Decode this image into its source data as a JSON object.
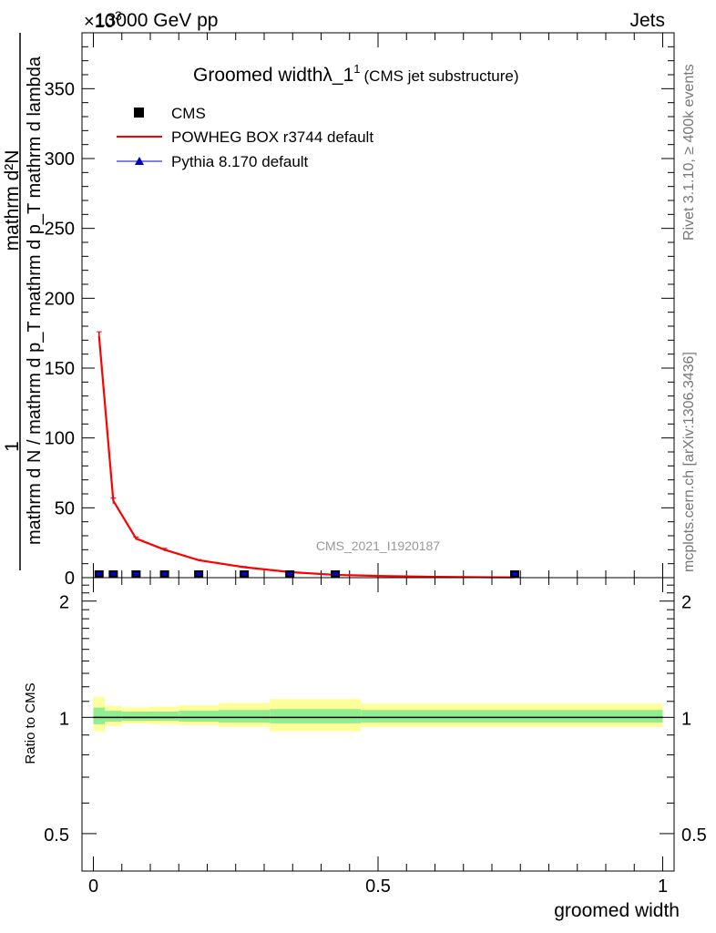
{
  "header": {
    "energy_label": "13000 GeV pp",
    "process_label": "Jets",
    "exponent_prefix": "×10",
    "exponent_value": "3"
  },
  "side_labels": {
    "rivet": "Rivet 3.1.10, ≥ 400k events",
    "mcplots": "mcplots.cern.ch [arXiv:1306.3436]"
  },
  "watermark": "CMS_2021_I1920187",
  "colors": {
    "powheg": "#ff0000",
    "pythia": "#0000cc",
    "cms": "#000000",
    "band_inner": "#90ee90",
    "band_outer": "#ffff99"
  },
  "chart_data": [
    {
      "type": "line",
      "panel": "main",
      "title": "Groomed width",
      "title_symbol": "λ_1",
      "title_superscript": "1",
      "subtitle": "(CMS jet substructure)",
      "ylabel_numerator": "mathrm d²N",
      "ylabel_denominator": "mathrm d N / mathrm d p_T mathrm d p_T mathrm d lambda",
      "ylabel_prefix": "1",
      "xlim": [
        -0.02,
        1.02
      ],
      "ylim": [
        0,
        390
      ],
      "y_ticks": [
        0,
        50,
        100,
        150,
        200,
        250,
        300,
        350
      ],
      "y_tick_labels": [
        "0",
        "50",
        "100",
        "150",
        "200",
        "250",
        "300",
        "350"
      ],
      "legend": [
        {
          "name": "CMS",
          "marker": "square"
        },
        {
          "name": "POWHEG BOX r3744 default",
          "marker": "line"
        },
        {
          "name": "Pythia 8.170 default",
          "marker": "triangle"
        }
      ],
      "cms_points": {
        "x": [
          0.01,
          0.035,
          0.075,
          0.125,
          0.185,
          0.265,
          0.345,
          0.425,
          0.74
        ],
        "y": [
          0.5,
          0.5,
          0.5,
          0.5,
          0.5,
          0.5,
          0.5,
          0.5,
          0.5
        ]
      },
      "powheg_curve": {
        "x": [
          0.01,
          0.035,
          0.075,
          0.125,
          0.185,
          0.265,
          0.345,
          0.425,
          0.5,
          0.6,
          0.7,
          0.74
        ],
        "y": [
          173,
          55,
          28,
          20,
          12.5,
          7.5,
          4,
          2,
          1.2,
          0.6,
          0.3,
          0.2
        ],
        "err": [
          3,
          2,
          1,
          1,
          0.5,
          0.5,
          0.3,
          0.2,
          0.1,
          0.1,
          0.1,
          0.1
        ]
      }
    },
    {
      "type": "area",
      "panel": "ratio",
      "ylabel": "Ratio to CMS",
      "xlabel": "groomed width",
      "xlim": [
        -0.02,
        1.02
      ],
      "ylim": [
        0.4,
        2.3
      ],
      "y_scale": "log",
      "y_ticks": [
        0.5,
        1,
        2
      ],
      "y_tick_labels": [
        "0.5",
        "1",
        "2"
      ],
      "x_ticks": [
        0,
        0.5,
        1
      ],
      "x_tick_labels": [
        "0",
        "0.5",
        "1"
      ],
      "bands": [
        {
          "x0": 0.0,
          "x1": 0.02,
          "inner": [
            0.96,
            1.06
          ],
          "outer": [
            0.92,
            1.13
          ]
        },
        {
          "x0": 0.02,
          "x1": 0.05,
          "inner": [
            0.975,
            1.04
          ],
          "outer": [
            0.95,
            1.07
          ]
        },
        {
          "x0": 0.05,
          "x1": 0.1,
          "inner": [
            0.98,
            1.035
          ],
          "outer": [
            0.965,
            1.06
          ]
        },
        {
          "x0": 0.1,
          "x1": 0.15,
          "inner": [
            0.98,
            1.035
          ],
          "outer": [
            0.96,
            1.065
          ]
        },
        {
          "x0": 0.15,
          "x1": 0.22,
          "inner": [
            0.975,
            1.04
          ],
          "outer": [
            0.955,
            1.075
          ]
        },
        {
          "x0": 0.22,
          "x1": 0.31,
          "inner": [
            0.97,
            1.045
          ],
          "outer": [
            0.945,
            1.09
          ]
        },
        {
          "x0": 0.31,
          "x1": 0.47,
          "inner": [
            0.965,
            1.05
          ],
          "outer": [
            0.92,
            1.115
          ]
        },
        {
          "x0": 0.47,
          "x1": 1.0,
          "inner": [
            0.97,
            1.045
          ],
          "outer": [
            0.945,
            1.085
          ]
        }
      ]
    }
  ]
}
